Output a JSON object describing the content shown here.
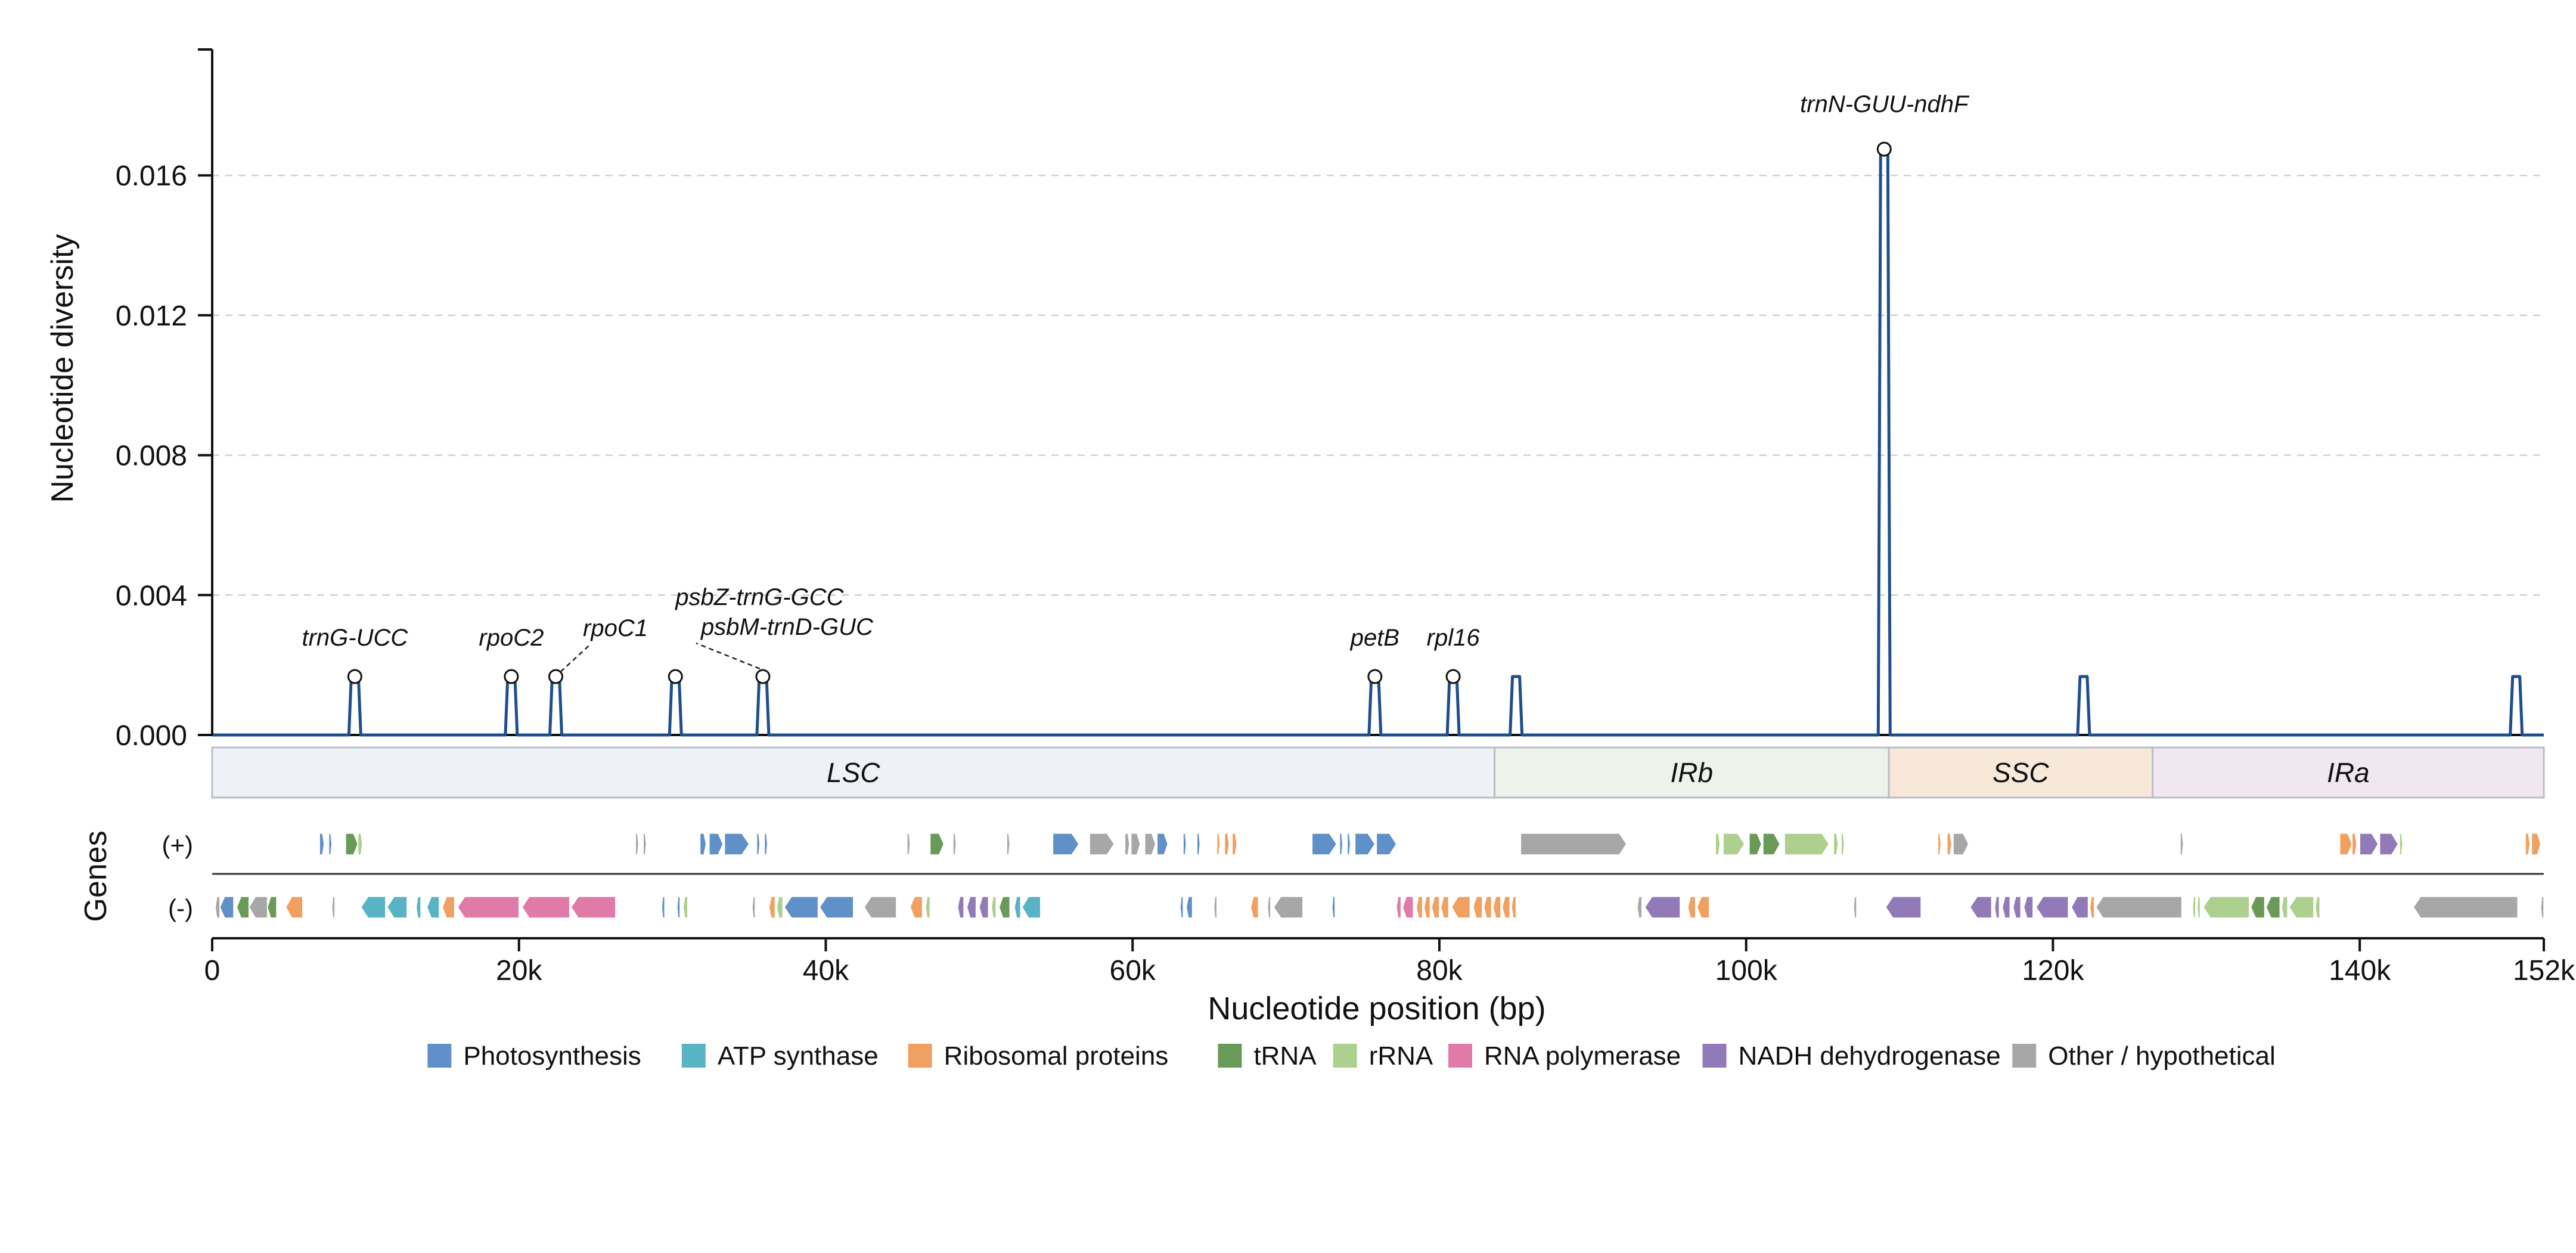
{
  "chart_data": {
    "type": "line",
    "ylabel": "Nucleotide diversity",
    "xlabel": "Nucleotide position (bp)",
    "genes_label": "Genes",
    "plus_strand_label": "(+)",
    "minus_strand_label": "(-)",
    "xlim": [
      0,
      152000
    ],
    "ylim": [
      0,
      0.0196
    ],
    "yticks": [
      0.0,
      0.004,
      0.008,
      0.012,
      0.016
    ],
    "ytick_labels": [
      "0.000",
      "0.004",
      "0.008",
      "0.012",
      "0.016"
    ],
    "xticks": [
      0,
      20000,
      40000,
      60000,
      80000,
      100000,
      120000,
      140000,
      152000
    ],
    "xtick_labels": [
      "0",
      "20k",
      "40k",
      "60k",
      "80k",
      "100k",
      "120k",
      "140k",
      "152k"
    ],
    "grid": "horizontal dashed",
    "line_color": "#1f4e8c",
    "spikes": [
      {
        "x": 9300,
        "y": 0.00167
      },
      {
        "x": 19500,
        "y": 0.00167
      },
      {
        "x": 22400,
        "y": 0.00167
      },
      {
        "x": 30200,
        "y": 0.00167
      },
      {
        "x": 35900,
        "y": 0.00167
      },
      {
        "x": 75800,
        "y": 0.00167
      },
      {
        "x": 80900,
        "y": 0.00167
      },
      {
        "x": 85000,
        "y": 0.00167
      },
      {
        "x": 109000,
        "y": 0.01675
      },
      {
        "x": 122000,
        "y": 0.00167
      },
      {
        "x": 150200,
        "y": 0.00167
      }
    ],
    "peaks": [
      {
        "x": 9300,
        "y": 0.00167,
        "label": "trnG-UCC"
      },
      {
        "x": 19500,
        "y": 0.00167,
        "label": "rpoC2"
      },
      {
        "x": 22400,
        "y": 0.00167,
        "label": "rpoC1"
      },
      {
        "x": 30200,
        "y": 0.00167,
        "label": "psbZ-trnG-GCC"
      },
      {
        "x": 35900,
        "y": 0.00167,
        "label": "psbM-trnD-GUC"
      },
      {
        "x": 75800,
        "y": 0.00167,
        "label": "petB"
      },
      {
        "x": 80900,
        "y": 0.00167,
        "label": "rpl16"
      },
      {
        "x": 109000,
        "y": 0.01675,
        "label": "trnN-GUU-ndhF"
      }
    ],
    "regions": [
      {
        "label": "LSC",
        "start": 0,
        "end": 83600,
        "color": "#eef2f6"
      },
      {
        "label": "IRb",
        "start": 83600,
        "end": 109300,
        "color": "#edf3ea"
      },
      {
        "label": "SSC",
        "start": 109300,
        "end": 126500,
        "color": "#f7e8da"
      },
      {
        "label": "IRa",
        "start": 126500,
        "end": 152000,
        "color": "#f1e7f2"
      }
    ],
    "legend": {
      "placement": "bottom-center",
      "items": [
        {
          "label": "Photosynthesis",
          "color": "#6090c8"
        },
        {
          "label": "ATP synthase",
          "color": "#58b3c4"
        },
        {
          "label": "Ribosomal proteins",
          "color": "#f0a060"
        },
        {
          "label": "tRNA",
          "color": "#6a9a58"
        },
        {
          "label": "rRNA",
          "color": "#aed08e"
        },
        {
          "label": "RNA polymerase",
          "color": "#e07aa8"
        },
        {
          "label": "NADH dehydrogenase",
          "color": "#9279b8"
        },
        {
          "label": "Other / hypothetical",
          "color": "#a7a7a7"
        }
      ]
    },
    "genes_plus": [
      {
        "start": 7000,
        "end": 7300,
        "cat": 0
      },
      {
        "start": 7600,
        "end": 7800,
        "cat": 0
      },
      {
        "start": 8700,
        "end": 9500,
        "cat": 3
      },
      {
        "start": 9500,
        "end": 9800,
        "cat": 4
      },
      {
        "start": 27600,
        "end": 27800,
        "cat": 7
      },
      {
        "start": 28100,
        "end": 28300,
        "cat": 7
      },
      {
        "start": 31800,
        "end": 32200,
        "cat": 0
      },
      {
        "start": 32400,
        "end": 33300,
        "cat": 0
      },
      {
        "start": 33400,
        "end": 35000,
        "cat": 0
      },
      {
        "start": 35500,
        "end": 35700,
        "cat": 0
      },
      {
        "start": 36000,
        "end": 36200,
        "cat": 0
      },
      {
        "start": 45300,
        "end": 45500,
        "cat": 7
      },
      {
        "start": 46800,
        "end": 47700,
        "cat": 3
      },
      {
        "start": 48300,
        "end": 48500,
        "cat": 7
      },
      {
        "start": 51800,
        "end": 52000,
        "cat": 7
      },
      {
        "start": 54800,
        "end": 56500,
        "cat": 0
      },
      {
        "start": 57200,
        "end": 58800,
        "cat": 7
      },
      {
        "start": 59500,
        "end": 59800,
        "cat": 7
      },
      {
        "start": 59900,
        "end": 60500,
        "cat": 7
      },
      {
        "start": 60800,
        "end": 61500,
        "cat": 7
      },
      {
        "start": 61600,
        "end": 62300,
        "cat": 0
      },
      {
        "start": 63300,
        "end": 63500,
        "cat": 0
      },
      {
        "start": 64200,
        "end": 64400,
        "cat": 0
      },
      {
        "start": 65500,
        "end": 65700,
        "cat": 2
      },
      {
        "start": 66000,
        "end": 66300,
        "cat": 2
      },
      {
        "start": 66500,
        "end": 66800,
        "cat": 2
      },
      {
        "start": 71700,
        "end": 73300,
        "cat": 0
      },
      {
        "start": 73500,
        "end": 73700,
        "cat": 0
      },
      {
        "start": 74000,
        "end": 74200,
        "cat": 0
      },
      {
        "start": 74500,
        "end": 75800,
        "cat": 0
      },
      {
        "start": 75900,
        "end": 77200,
        "cat": 0
      },
      {
        "start": 85300,
        "end": 92200,
        "cat": 7
      },
      {
        "start": 98000,
        "end": 98300,
        "cat": 4
      },
      {
        "start": 98500,
        "end": 99900,
        "cat": 4
      },
      {
        "start": 100200,
        "end": 101000,
        "cat": 3
      },
      {
        "start": 101100,
        "end": 102200,
        "cat": 3
      },
      {
        "start": 102500,
        "end": 105400,
        "cat": 4
      },
      {
        "start": 105700,
        "end": 106000,
        "cat": 4
      },
      {
        "start": 106200,
        "end": 106400,
        "cat": 4
      },
      {
        "start": 112500,
        "end": 112700,
        "cat": 2
      },
      {
        "start": 113100,
        "end": 113400,
        "cat": 2
      },
      {
        "start": 113500,
        "end": 114500,
        "cat": 7
      },
      {
        "start": 128300,
        "end": 128500,
        "cat": 7
      },
      {
        "start": 138700,
        "end": 139500,
        "cat": 2
      },
      {
        "start": 139500,
        "end": 139800,
        "cat": 2
      },
      {
        "start": 140000,
        "end": 141200,
        "cat": 6
      },
      {
        "start": 141300,
        "end": 142500,
        "cat": 6
      },
      {
        "start": 142600,
        "end": 142800,
        "cat": 4
      },
      {
        "start": 150800,
        "end": 151100,
        "cat": 2
      },
      {
        "start": 151200,
        "end": 151800,
        "cat": 2
      }
    ],
    "genes_minus": [
      {
        "start": 200,
        "end": 500,
        "cat": 7
      },
      {
        "start": 500,
        "end": 1400,
        "cat": 0
      },
      {
        "start": 1600,
        "end": 2400,
        "cat": 3
      },
      {
        "start": 2400,
        "end": 3600,
        "cat": 7
      },
      {
        "start": 3600,
        "end": 4200,
        "cat": 3
      },
      {
        "start": 4800,
        "end": 5900,
        "cat": 2
      },
      {
        "start": 7800,
        "end": 8000,
        "cat": 7
      },
      {
        "start": 9700,
        "end": 11300,
        "cat": 1
      },
      {
        "start": 11400,
        "end": 12700,
        "cat": 1
      },
      {
        "start": 13300,
        "end": 13600,
        "cat": 1
      },
      {
        "start": 14000,
        "end": 14800,
        "cat": 1
      },
      {
        "start": 15000,
        "end": 15800,
        "cat": 2
      },
      {
        "start": 16000,
        "end": 20000,
        "cat": 5
      },
      {
        "start": 20200,
        "end": 23300,
        "cat": 5
      },
      {
        "start": 23400,
        "end": 26300,
        "cat": 5
      },
      {
        "start": 29300,
        "end": 29500,
        "cat": 0
      },
      {
        "start": 30300,
        "end": 30500,
        "cat": 0
      },
      {
        "start": 30700,
        "end": 31000,
        "cat": 4
      },
      {
        "start": 35200,
        "end": 35400,
        "cat": 7
      },
      {
        "start": 36300,
        "end": 36700,
        "cat": 2
      },
      {
        "start": 36800,
        "end": 37200,
        "cat": 4
      },
      {
        "start": 37300,
        "end": 39500,
        "cat": 0
      },
      {
        "start": 39600,
        "end": 41800,
        "cat": 0
      },
      {
        "start": 42500,
        "end": 44600,
        "cat": 7
      },
      {
        "start": 45500,
        "end": 46300,
        "cat": 2
      },
      {
        "start": 46500,
        "end": 46800,
        "cat": 4
      },
      {
        "start": 48600,
        "end": 49000,
        "cat": 6
      },
      {
        "start": 49200,
        "end": 49800,
        "cat": 6
      },
      {
        "start": 50000,
        "end": 50600,
        "cat": 6
      },
      {
        "start": 50800,
        "end": 51100,
        "cat": 4
      },
      {
        "start": 51300,
        "end": 52000,
        "cat": 3
      },
      {
        "start": 52300,
        "end": 52700,
        "cat": 1
      },
      {
        "start": 52800,
        "end": 54000,
        "cat": 1
      },
      {
        "start": 63100,
        "end": 63300,
        "cat": 0
      },
      {
        "start": 63500,
        "end": 63900,
        "cat": 0
      },
      {
        "start": 65300,
        "end": 65500,
        "cat": 7
      },
      {
        "start": 67700,
        "end": 68200,
        "cat": 2
      },
      {
        "start": 68800,
        "end": 69000,
        "cat": 7
      },
      {
        "start": 69200,
        "end": 71100,
        "cat": 7
      },
      {
        "start": 73000,
        "end": 73200,
        "cat": 0
      },
      {
        "start": 77200,
        "end": 77500,
        "cat": 5
      },
      {
        "start": 77600,
        "end": 78300,
        "cat": 5
      },
      {
        "start": 78500,
        "end": 78900,
        "cat": 2
      },
      {
        "start": 79000,
        "end": 79400,
        "cat": 2
      },
      {
        "start": 79500,
        "end": 80000,
        "cat": 2
      },
      {
        "start": 80100,
        "end": 80600,
        "cat": 2
      },
      {
        "start": 80800,
        "end": 82000,
        "cat": 2
      },
      {
        "start": 82200,
        "end": 82800,
        "cat": 2
      },
      {
        "start": 82900,
        "end": 83400,
        "cat": 2
      },
      {
        "start": 83500,
        "end": 84000,
        "cat": 2
      },
      {
        "start": 84100,
        "end": 84600,
        "cat": 2
      },
      {
        "start": 84700,
        "end": 85000,
        "cat": 2
      },
      {
        "start": 92900,
        "end": 93200,
        "cat": 7
      },
      {
        "start": 93400,
        "end": 95700,
        "cat": 6
      },
      {
        "start": 96200,
        "end": 96700,
        "cat": 2
      },
      {
        "start": 96800,
        "end": 97600,
        "cat": 2
      },
      {
        "start": 107000,
        "end": 107200,
        "cat": 7
      },
      {
        "start": 109100,
        "end": 111400,
        "cat": 6
      },
      {
        "start": 114600,
        "end": 116000,
        "cat": 6
      },
      {
        "start": 116200,
        "end": 116500,
        "cat": 6
      },
      {
        "start": 116700,
        "end": 117200,
        "cat": 6
      },
      {
        "start": 117400,
        "end": 117900,
        "cat": 6
      },
      {
        "start": 118100,
        "end": 118700,
        "cat": 6
      },
      {
        "start": 118900,
        "end": 121000,
        "cat": 6
      },
      {
        "start": 121200,
        "end": 122300,
        "cat": 6
      },
      {
        "start": 122400,
        "end": 122700,
        "cat": 2
      },
      {
        "start": 122800,
        "end": 128400,
        "cat": 7
      },
      {
        "start": 129100,
        "end": 129300,
        "cat": 4
      },
      {
        "start": 129400,
        "end": 129600,
        "cat": 4
      },
      {
        "start": 129800,
        "end": 132800,
        "cat": 4
      },
      {
        "start": 132900,
        "end": 133800,
        "cat": 3
      },
      {
        "start": 133900,
        "end": 134800,
        "cat": 3
      },
      {
        "start": 134900,
        "end": 135300,
        "cat": 4
      },
      {
        "start": 135400,
        "end": 137000,
        "cat": 4
      },
      {
        "start": 137100,
        "end": 137400,
        "cat": 4
      },
      {
        "start": 143500,
        "end": 150300,
        "cat": 7
      },
      {
        "start": 151800,
        "end": 152000,
        "cat": 7
      }
    ]
  }
}
